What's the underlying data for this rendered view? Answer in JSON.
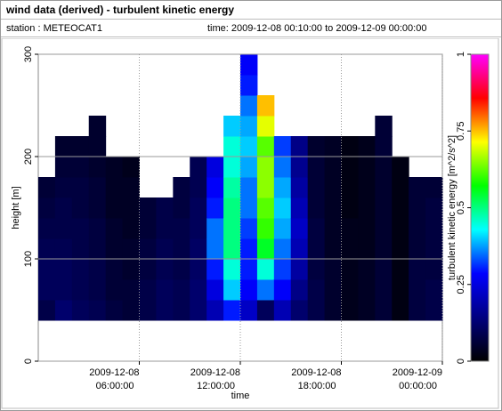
{
  "header": {
    "title": "wind data (derived) - turbulent kinetic energy",
    "station": "station : METEOCAT1",
    "time": "time: 2009-12-08 00:10:00 to 2009-12-09 00:00:00"
  },
  "chart_data": {
    "type": "heatmap",
    "x_label": "time",
    "y_label": "height [m]",
    "colorbar_label": "turbulent kinetic energy [m^2/s^2]",
    "x": [
      0,
      1,
      2,
      3,
      4,
      5,
      6,
      7,
      8,
      9,
      10,
      11,
      12,
      13,
      14,
      15,
      16,
      17,
      18,
      19,
      20,
      21,
      22,
      23
    ],
    "y": [
      40,
      60,
      80,
      100,
      120,
      140,
      160,
      180,
      200,
      220,
      240,
      260,
      280
    ],
    "xlim": [
      0,
      24
    ],
    "ylim": [
      0,
      300
    ],
    "xticks": [
      {
        "value": 6,
        "label": [
          "2009-12-08",
          "06:00:00"
        ]
      },
      {
        "value": 12,
        "label": [
          "2009-12-08",
          "12:00:00"
        ]
      },
      {
        "value": 18,
        "label": [
          "2009-12-08",
          "18:00:00"
        ]
      },
      {
        "value": 24,
        "label": [
          "2009-12-09",
          "00:00:00"
        ]
      }
    ],
    "yticks": [
      0,
      100,
      200,
      300
    ],
    "zlim": [
      0,
      1
    ],
    "zticks": [
      0,
      0.25,
      0.5,
      0.75,
      1
    ],
    "colormap": [
      "#000000",
      "#000080",
      "#0000ff",
      "#00ffff",
      "#00ff00",
      "#ffff00",
      "#ff0000",
      "#ff00ff"
    ],
    "grid": true,
    "values": [
      [
        0.08,
        0.1,
        0.1,
        0.09,
        0.08,
        0.07,
        0.06,
        null,
        null,
        null,
        null,
        null,
        null
      ],
      [
        0.12,
        0.1,
        0.1,
        0.09,
        0.08,
        0.08,
        0.07,
        0.06,
        0.05,
        null,
        null,
        null,
        null
      ],
      [
        0.1,
        0.09,
        0.09,
        0.08,
        0.08,
        0.07,
        0.07,
        0.06,
        0.05,
        null,
        null,
        null,
        null
      ],
      [
        0.09,
        0.08,
        0.08,
        0.07,
        0.07,
        0.06,
        0.06,
        0.05,
        0.05,
        0.05,
        null,
        null,
        null
      ],
      [
        0.07,
        0.06,
        0.06,
        0.05,
        0.05,
        0.04,
        0.04,
        0.04,
        null,
        null,
        null,
        null,
        null
      ],
      [
        0.06,
        0.06,
        0.05,
        0.05,
        0.04,
        0.04,
        0.04,
        0.03,
        null,
        null,
        null,
        null,
        null
      ],
      [
        0.08,
        0.08,
        0.07,
        0.07,
        0.06,
        0.06,
        null,
        null,
        null,
        null,
        null,
        null,
        null
      ],
      [
        0.1,
        0.1,
        0.09,
        0.09,
        0.08,
        0.08,
        null,
        null,
        null,
        null,
        null,
        null,
        null
      ],
      [
        0.09,
        0.09,
        0.08,
        0.08,
        0.08,
        0.07,
        0.07,
        null,
        null,
        null,
        null,
        null,
        null
      ],
      [
        0.12,
        0.12,
        0.11,
        0.11,
        0.1,
        0.1,
        0.09,
        0.09,
        null,
        null,
        null,
        null,
        null
      ],
      [
        0.2,
        0.25,
        0.3,
        0.35,
        0.35,
        0.3,
        0.28,
        0.25,
        null,
        null,
        null,
        null,
        null
      ],
      [
        0.3,
        0.4,
        0.45,
        0.5,
        0.5,
        0.5,
        0.48,
        0.45,
        0.45,
        0.4,
        null,
        null,
        null
      ],
      [
        0.22,
        0.28,
        0.3,
        0.3,
        0.32,
        0.35,
        0.35,
        0.38,
        0.4,
        0.38,
        0.35,
        0.3,
        0.28
      ],
      [
        0.1,
        0.35,
        0.45,
        0.55,
        0.6,
        0.62,
        0.65,
        0.65,
        0.62,
        0.7,
        0.75,
        null,
        null
      ],
      [
        0.2,
        0.28,
        0.32,
        0.35,
        0.38,
        0.4,
        0.38,
        0.35,
        0.32,
        null,
        null,
        null,
        null
      ],
      [
        0.12,
        0.15,
        0.18,
        0.2,
        0.22,
        0.2,
        0.18,
        0.16,
        0.15,
        null,
        null,
        null,
        null
      ],
      [
        0.08,
        0.08,
        0.07,
        0.07,
        0.07,
        0.06,
        0.06,
        0.06,
        0.05,
        null,
        null,
        null,
        null
      ],
      [
        0.05,
        0.05,
        0.05,
        0.04,
        0.04,
        0.04,
        0.04,
        0.04,
        0.04,
        null,
        null,
        null,
        null
      ],
      [
        0.03,
        0.03,
        0.03,
        0.03,
        0.03,
        0.02,
        0.02,
        0.02,
        0.02,
        null,
        null,
        null,
        null
      ],
      [
        0.04,
        0.04,
        0.04,
        0.03,
        0.03,
        0.03,
        0.03,
        0.03,
        0.03,
        null,
        null,
        null,
        null
      ],
      [
        0.06,
        0.06,
        0.06,
        0.05,
        0.05,
        0.05,
        0.05,
        0.05,
        0.06,
        0.06,
        null,
        null,
        null
      ],
      [
        0.02,
        0.02,
        0.02,
        0.02,
        0.02,
        0.02,
        0.02,
        0.02,
        null,
        null,
        null,
        null,
        null
      ],
      [
        0.07,
        0.07,
        0.07,
        0.06,
        0.06,
        0.06,
        0.06,
        null,
        null,
        null,
        null,
        null,
        null
      ],
      [
        0.08,
        0.08,
        0.07,
        0.07,
        0.07,
        0.07,
        0.06,
        null,
        null,
        null,
        null,
        null,
        null
      ]
    ]
  }
}
